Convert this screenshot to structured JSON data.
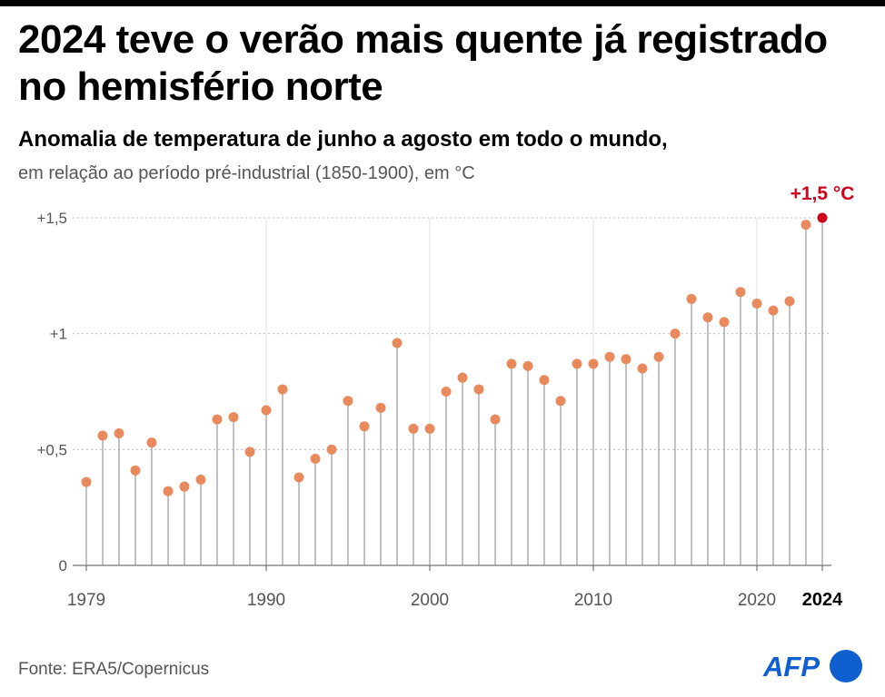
{
  "header": {
    "title": "2024 teve o verão mais quente já registrado no hemisfério norte",
    "subtitle": "Anomalia de temperatura de junho a agosto em todo o mundo,",
    "subtitle_detail": "em relação ao período pré-industrial (1850-1900), em °C"
  },
  "footer": {
    "source": "Fonte: ERA5/Copernicus",
    "logo_text": "AFP"
  },
  "colors": {
    "dot": "#e98a5e",
    "highlight": "#d0021b",
    "stem": "#9a9a9a",
    "grid": "#bdbdbd",
    "logo_blue": "#0f5fcf"
  },
  "chart_data": {
    "type": "scatter",
    "style": "lollipop",
    "x_label": "",
    "y_label": "",
    "ylim": [
      0,
      1.5
    ],
    "y_ticks": [
      {
        "value": 0,
        "label": "0"
      },
      {
        "value": 0.5,
        "label": "+0,5"
      },
      {
        "value": 1,
        "label": "+1"
      },
      {
        "value": 1.5,
        "label": "+1,5"
      }
    ],
    "x_ticks": [
      {
        "value": 1979,
        "label": "1979",
        "bold": false
      },
      {
        "value": 1990,
        "label": "1990",
        "bold": false
      },
      {
        "value": 2000,
        "label": "2000",
        "bold": false
      },
      {
        "value": 2010,
        "label": "2010",
        "bold": false
      },
      {
        "value": 2020,
        "label": "2020",
        "bold": false
      },
      {
        "value": 2024,
        "label": "2024",
        "bold": true
      }
    ],
    "vertical_grid_years": [
      1990,
      2000,
      2010,
      2020
    ],
    "years": [
      1979,
      1980,
      1981,
      1982,
      1983,
      1984,
      1985,
      1986,
      1987,
      1988,
      1989,
      1990,
      1991,
      1992,
      1993,
      1994,
      1995,
      1996,
      1997,
      1998,
      1999,
      2000,
      2001,
      2002,
      2003,
      2004,
      2005,
      2006,
      2007,
      2008,
      2009,
      2010,
      2011,
      2012,
      2013,
      2014,
      2015,
      2016,
      2017,
      2018,
      2019,
      2020,
      2021,
      2022,
      2023,
      2024
    ],
    "values": [
      0.36,
      0.56,
      0.57,
      0.41,
      0.53,
      0.32,
      0.34,
      0.37,
      0.63,
      0.64,
      0.49,
      0.67,
      0.76,
      0.38,
      0.46,
      0.5,
      0.71,
      0.6,
      0.68,
      0.96,
      0.59,
      0.59,
      0.75,
      0.81,
      0.76,
      0.63,
      0.87,
      0.86,
      0.8,
      0.71,
      0.87,
      0.87,
      0.9,
      0.89,
      0.85,
      0.9,
      1.0,
      1.15,
      1.07,
      1.05,
      1.18,
      1.13,
      1.1,
      1.14,
      1.47,
      1.5
    ],
    "highlight": {
      "year": 2024,
      "label": "+1,5 °C"
    }
  }
}
